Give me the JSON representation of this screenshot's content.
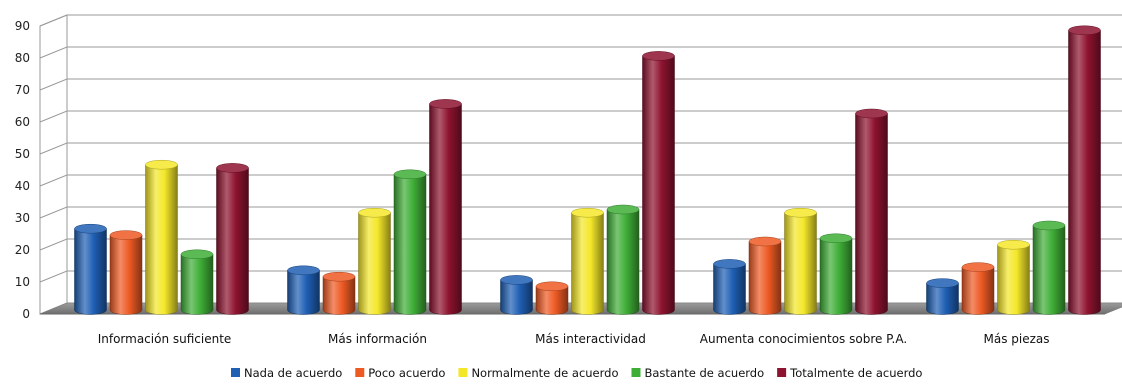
{
  "chart_data": {
    "type": "bar",
    "style": "3d-cylinder",
    "categories": [
      "Información suficiente",
      "Más información",
      "Más interactividad",
      "Aumenta conocimientos sobre P.A.",
      "Más piezas"
    ],
    "series": [
      {
        "name": "Nada de acuerdo",
        "color": "#1f5fb4",
        "values": [
          24,
          11,
          8,
          13,
          7
        ]
      },
      {
        "name": "Poco acuerdo",
        "color": "#ee5a24",
        "values": [
          22,
          9,
          6,
          20,
          12
        ]
      },
      {
        "name": "Normalmente de acuerdo",
        "color": "#f4e72a",
        "values": [
          44,
          29,
          29,
          29,
          19
        ]
      },
      {
        "name": "Bastante de acuerdo",
        "color": "#3fae37",
        "values": [
          16,
          41,
          30,
          21,
          25
        ]
      },
      {
        "name": "Totalmente de acuerdo",
        "color": "#8e1330",
        "values": [
          43,
          63,
          78,
          60,
          86
        ]
      }
    ],
    "ylim": [
      0,
      90
    ],
    "yticks": [
      0,
      10,
      20,
      30,
      40,
      50,
      60,
      70,
      80,
      90
    ],
    "grid": true,
    "legend": "bottom"
  }
}
